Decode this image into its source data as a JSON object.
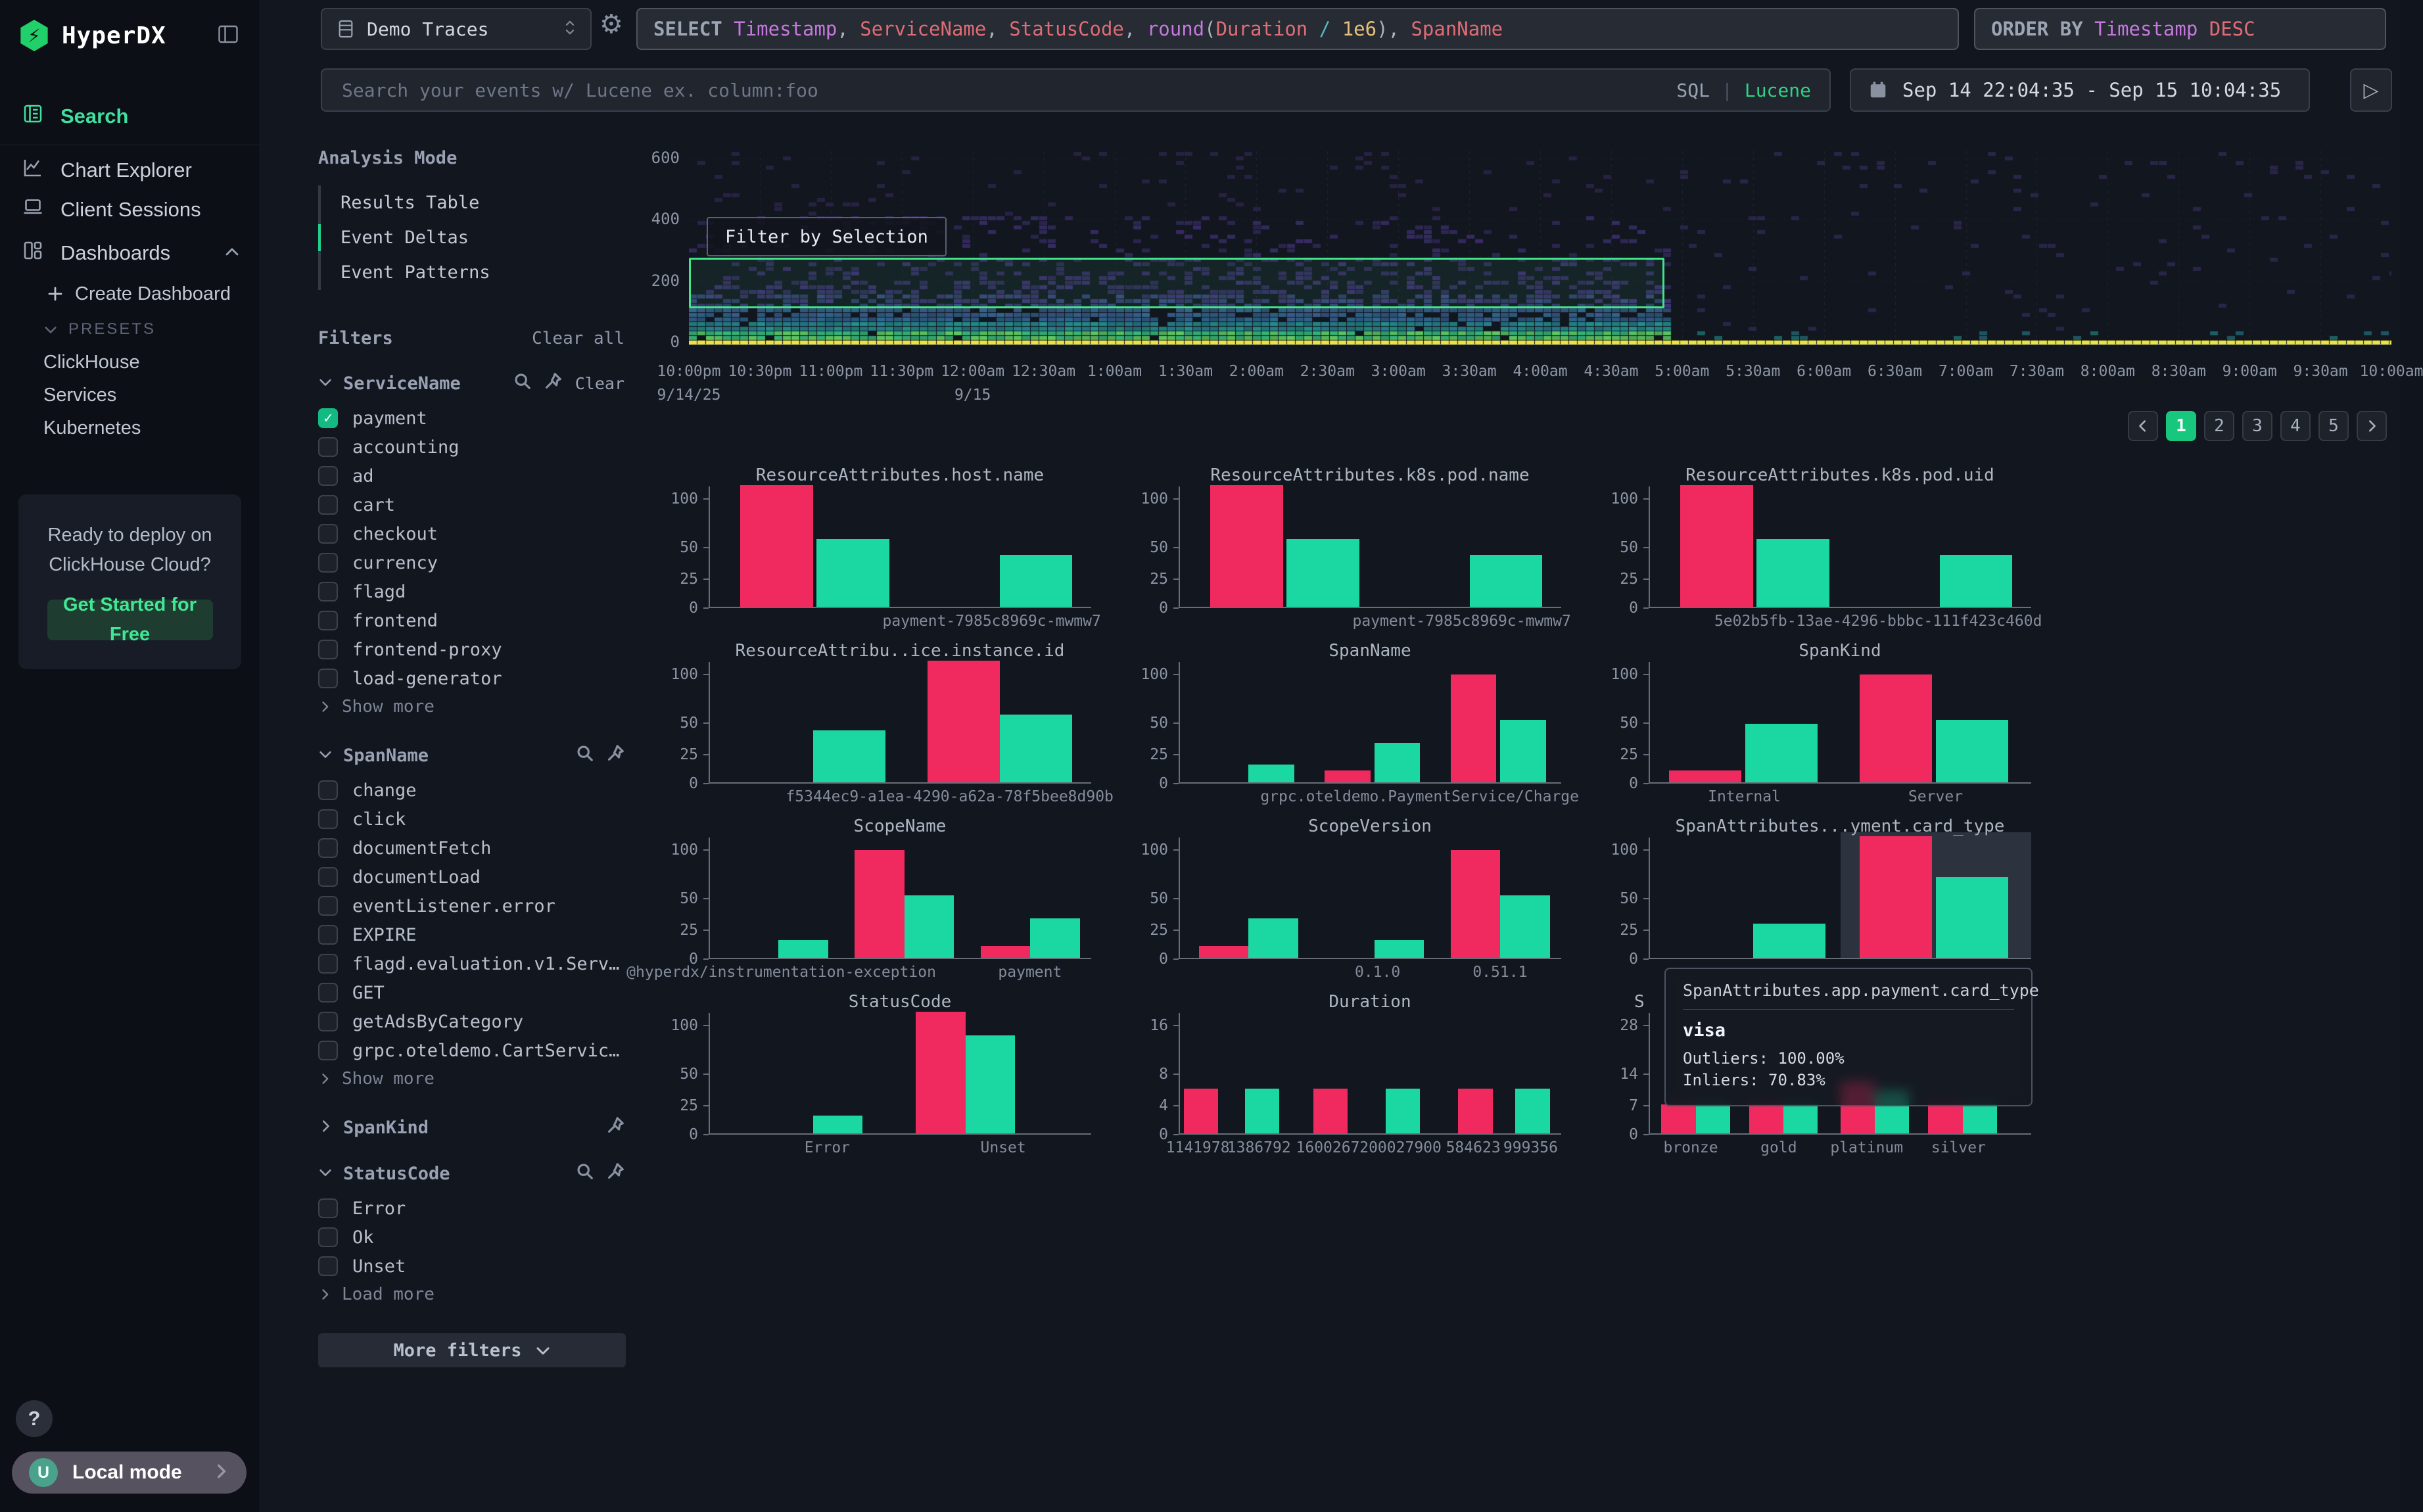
{
  "app": {
    "brand": "HyperDX"
  },
  "colors": {
    "accent_green": "#18c77e",
    "bright_green": "#3fe0a0",
    "bar_pink": "#f0295f",
    "bar_green": "#1bd8a2",
    "selection_green": "#42e38b",
    "checkbox_green": "#13ba81",
    "lucene_green": "#2fd283"
  },
  "sidebar": {
    "nav": [
      {
        "label": "Search",
        "icon": "logs-icon",
        "active": true
      },
      {
        "label": "Chart Explorer",
        "icon": "chart-icon",
        "active": false
      },
      {
        "label": "Client Sessions",
        "icon": "laptop-icon",
        "active": false
      },
      {
        "label": "Dashboards",
        "icon": "dashboard-icon",
        "active": false,
        "chevron": "up"
      }
    ],
    "create_dashboard": "Create Dashboard",
    "presets_label": "PRESETS",
    "presets": [
      "ClickHouse",
      "Services",
      "Kubernetes"
    ],
    "promo": {
      "line1": "Ready to deploy on",
      "line2": "ClickHouse Cloud?",
      "cta": "Get Started for Free"
    },
    "help": "?",
    "account": {
      "avatar": "U",
      "label": "Local mode"
    }
  },
  "topbar": {
    "source": "Demo Traces",
    "query": [
      {
        "t": "SELECT",
        "c": "kw"
      },
      {
        "t": " ",
        "c": "wh"
      },
      {
        "t": "Timestamp",
        "c": "pu"
      },
      {
        "t": ", ",
        "c": "wh"
      },
      {
        "t": "ServiceName",
        "c": "re"
      },
      {
        "t": ", ",
        "c": "wh"
      },
      {
        "t": "StatusCode",
        "c": "re"
      },
      {
        "t": ", ",
        "c": "wh"
      },
      {
        "t": "round",
        "c": "pu"
      },
      {
        "t": "(",
        "c": "wh"
      },
      {
        "t": "Duration",
        "c": "re"
      },
      {
        "t": " ",
        "c": "wh"
      },
      {
        "t": "/",
        "c": "cy"
      },
      {
        "t": " ",
        "c": "wh"
      },
      {
        "t": "1e6",
        "c": "ye"
      },
      {
        "t": ")",
        "c": "wh"
      },
      {
        "t": ", ",
        "c": "wh"
      },
      {
        "t": "SpanName",
        "c": "re"
      }
    ],
    "orderby": [
      {
        "t": "ORDER BY",
        "c": "kw"
      },
      {
        "t": " ",
        "c": "wh"
      },
      {
        "t": "Timestamp",
        "c": "pu"
      },
      {
        "t": " ",
        "c": "wh"
      },
      {
        "t": "DESC",
        "c": "re"
      }
    ],
    "search": {
      "placeholder": "Search your events w/ Lucene ex. column:foo",
      "modes": [
        "SQL",
        "Lucene"
      ],
      "active_mode": "Lucene",
      "separator": "|"
    },
    "daterange": "Sep 14 22:04:35 - Sep 15 10:04:35"
  },
  "filters_panel": {
    "analysis_mode": {
      "title": "Analysis Mode",
      "options": [
        "Results Table",
        "Event Deltas",
        "Event Patterns"
      ],
      "active": "Event Deltas"
    },
    "filters_title": "Filters",
    "clear_all": "Clear all",
    "groups": [
      {
        "name": "ServiceName",
        "expanded": true,
        "icons": [
          "search",
          "pin"
        ],
        "clear": "Clear",
        "items": [
          {
            "label": "payment",
            "checked": true
          },
          {
            "label": "accounting"
          },
          {
            "label": "ad"
          },
          {
            "label": "cart"
          },
          {
            "label": "checkout"
          },
          {
            "label": "currency"
          },
          {
            "label": "flagd"
          },
          {
            "label": "frontend"
          },
          {
            "label": "frontend-proxy"
          },
          {
            "label": "load-generator"
          }
        ],
        "more": "Show more"
      },
      {
        "name": "SpanName",
        "expanded": true,
        "icons": [
          "search",
          "pin"
        ],
        "items": [
          {
            "label": "change"
          },
          {
            "label": "click"
          },
          {
            "label": "documentFetch"
          },
          {
            "label": "documentLoad"
          },
          {
            "label": "eventListener.error"
          },
          {
            "label": "EXPIRE"
          },
          {
            "label": "flagd.evaluation.v1.Serv…"
          },
          {
            "label": "GET"
          },
          {
            "label": "getAdsByCategory"
          },
          {
            "label": "grpc.oteldemo.CartServic…"
          }
        ],
        "more": "Show more"
      },
      {
        "name": "SpanKind",
        "expanded": false,
        "icons": [
          "pin"
        ],
        "items": [],
        "more": ""
      },
      {
        "name": "StatusCode",
        "expanded": true,
        "icons": [
          "search",
          "pin"
        ],
        "items": [
          {
            "label": "Error"
          },
          {
            "label": "Ok"
          },
          {
            "label": "Unset"
          }
        ],
        "more": "Load more"
      }
    ],
    "more_filters": "More filters"
  },
  "heatmap": {
    "button_label": "Filter by Selection",
    "y_ticks": [
      "600",
      "400",
      "200",
      "0"
    ],
    "x_labels": [
      "10:00pm",
      "10:30pm",
      "11:00pm",
      "11:30pm",
      "12:00am",
      "12:30am",
      "1:00am",
      "1:30am",
      "2:00am",
      "2:30am",
      "3:00am",
      "3:30am",
      "4:00am",
      "4:30am",
      "5:00am",
      "5:30am",
      "6:00am",
      "6:30am",
      "7:00am",
      "7:30am",
      "8:00am",
      "8:30am",
      "9:00am",
      "9:30am",
      "10:00am"
    ],
    "date_labels": [
      {
        "t": "9/14/25",
        "i": 0
      },
      {
        "t": "9/15",
        "i": 4
      }
    ],
    "dense_end": 0.572,
    "palette": {
      "line": "#e9e441",
      "greens": [
        "#5ec962",
        "#35b779"
      ],
      "teals": [
        "#27808e",
        "#21918c"
      ],
      "blues": [
        "#31688e",
        "#3a5e8c"
      ],
      "darks": [
        "#3d4a89",
        "#453781"
      ],
      "purples": [
        "#46327e",
        "#3f3575"
      ],
      "faint": "#352c5a"
    }
  },
  "pagination": {
    "pages": [
      "1",
      "2",
      "3",
      "4",
      "5"
    ],
    "active": "1"
  },
  "chart_data": [
    {
      "type": "bar",
      "title": "ResourceAttributes.host.name",
      "ticks": [
        "100",
        "50",
        "25",
        "0"
      ],
      "t0": 100,
      "bw": 19,
      "bars": [
        {
          "v": 115,
          "c": "p",
          "x": 8
        },
        {
          "v": 57,
          "c": "g",
          "x": 28
        },
        {
          "v": 43,
          "c": "g",
          "x": 76
        }
      ],
      "labels": [
        {
          "t": "payment-7985c8969c-mwmw7",
          "x": 74
        }
      ]
    },
    {
      "type": "bar",
      "title": "ResourceAttributes.k8s.pod.name",
      "ticks": [
        "100",
        "50",
        "25",
        "0"
      ],
      "t0": 100,
      "bw": 19,
      "bars": [
        {
          "v": 115,
          "c": "p",
          "x": 8
        },
        {
          "v": 57,
          "c": "g",
          "x": 28
        },
        {
          "v": 43,
          "c": "g",
          "x": 76
        }
      ],
      "labels": [
        {
          "t": "payment-7985c8969c-mwmw7",
          "x": 74
        }
      ]
    },
    {
      "type": "bar",
      "title": "ResourceAttributes.k8s.pod.uid",
      "ticks": [
        "100",
        "50",
        "25",
        "0"
      ],
      "t0": 100,
      "bw": 19,
      "bars": [
        {
          "v": 115,
          "c": "p",
          "x": 8
        },
        {
          "v": 57,
          "c": "g",
          "x": 28
        },
        {
          "v": 43,
          "c": "g",
          "x": 76
        }
      ],
      "labels": [
        {
          "t": "5e02b5fb-13ae-4296-bbbc-111f423c460d",
          "x": 60
        }
      ]
    },
    {
      "type": "bar",
      "title": "ResourceAttribu..ice.instance.id",
      "ticks": [
        "100",
        "50",
        "25",
        "0"
      ],
      "t0": 100,
      "bw": 19,
      "bars": [
        {
          "v": 43,
          "c": "g",
          "x": 27
        },
        {
          "v": 115,
          "c": "p",
          "x": 57
        },
        {
          "v": 57,
          "c": "g",
          "x": 76
        }
      ],
      "labels": [
        {
          "t": "f5344ec9-a1ea-4290-a62a-78f5bee8d90b",
          "x": 63
        }
      ]
    },
    {
      "type": "bar",
      "title": "SpanName",
      "ticks": [
        "100",
        "50",
        "25",
        "0"
      ],
      "t0": 100,
      "bw": 12,
      "bars": [
        {
          "v": 15,
          "c": "g",
          "x": 18
        },
        {
          "v": 10,
          "c": "p",
          "x": 38
        },
        {
          "v": 33,
          "c": "g",
          "x": 51
        },
        {
          "v": 98,
          "c": "p",
          "x": 71
        },
        {
          "v": 52,
          "c": "g",
          "x": 84
        }
      ],
      "labels": [
        {
          "t": "grpc.oteldemo.PaymentService/Charge",
          "x": 63
        }
      ]
    },
    {
      "type": "bar",
      "title": "SpanKind",
      "ticks": [
        "100",
        "50",
        "25",
        "0"
      ],
      "t0": 100,
      "bw": 19,
      "bars": [
        {
          "v": 10,
          "c": "p",
          "x": 5
        },
        {
          "v": 48,
          "c": "g",
          "x": 25
        },
        {
          "v": 98,
          "c": "p",
          "x": 55
        },
        {
          "v": 52,
          "c": "g",
          "x": 75
        }
      ],
      "labels": [
        {
          "t": "Internal",
          "x": 25
        },
        {
          "t": "Server",
          "x": 75
        }
      ]
    },
    {
      "type": "bar",
      "title": "ScopeName",
      "ticks": [
        "100",
        "50",
        "25",
        "0"
      ],
      "t0": 100,
      "bw": 13,
      "bars": [
        {
          "v": 15,
          "c": "g",
          "x": 18
        },
        {
          "v": 98,
          "c": "p",
          "x": 38
        },
        {
          "v": 52,
          "c": "g",
          "x": 51
        },
        {
          "v": 10,
          "c": "p",
          "x": 71
        },
        {
          "v": 33,
          "c": "g",
          "x": 84
        }
      ],
      "labels": [
        {
          "t": "@hyperdx/instrumentation-exception",
          "x": 19
        },
        {
          "t": "payment",
          "x": 84
        }
      ]
    },
    {
      "type": "bar",
      "title": "ScopeVersion",
      "ticks": [
        "100",
        "50",
        "25",
        "0"
      ],
      "t0": 100,
      "bw": 13,
      "bars": [
        {
          "v": 10,
          "c": "p",
          "x": 5
        },
        {
          "v": 33,
          "c": "g",
          "x": 18
        },
        {
          "v": 15,
          "c": "g",
          "x": 51
        },
        {
          "v": 98,
          "c": "p",
          "x": 71
        },
        {
          "v": 52,
          "c": "g",
          "x": 84
        }
      ],
      "labels": [
        {
          "t": "0.1.0",
          "x": 52
        },
        {
          "t": "0.51.1",
          "x": 84
        }
      ]
    },
    {
      "type": "bar",
      "title": "SpanAttributes...yment.card_type",
      "ticks": [
        "100",
        "50",
        "25",
        "0"
      ],
      "t0": 100,
      "bw": 19,
      "hover_band": {
        "x": 50,
        "w": 50
      },
      "bars": [
        {
          "v": 29,
          "c": "g",
          "x": 27
        },
        {
          "v": 115,
          "c": "p",
          "x": 55
        },
        {
          "v": 70.83,
          "c": "g",
          "x": 75
        }
      ],
      "labels": []
    },
    {
      "type": "bar",
      "title": "StatusCode",
      "ticks": [
        "100",
        "50",
        "25",
        "0"
      ],
      "t0": 100,
      "bw": 13,
      "bars": [
        {
          "v": 15,
          "c": "g",
          "x": 27
        },
        {
          "v": 115,
          "c": "p",
          "x": 54
        },
        {
          "v": 88,
          "c": "g",
          "x": 67
        }
      ],
      "labels": [
        {
          "t": "Error",
          "x": 31
        },
        {
          "t": "Unset",
          "x": 77
        }
      ]
    },
    {
      "type": "bar",
      "title": "Duration",
      "ticks": [
        "16",
        "8",
        "4",
        "0"
      ],
      "t0": 16,
      "bw": 9,
      "bars": [
        {
          "v": 6,
          "c": "p",
          "x": 1
        },
        {
          "v": 6,
          "c": "g",
          "x": 17
        },
        {
          "v": 6,
          "c": "p",
          "x": 35
        },
        {
          "v": 6,
          "c": "g",
          "x": 54
        },
        {
          "v": 6,
          "c": "p",
          "x": 73
        },
        {
          "v": 6,
          "c": "g",
          "x": 88
        }
      ],
      "labels": [
        {
          "t": "1141978",
          "x": 5
        },
        {
          "t": "1386792",
          "x": 21
        },
        {
          "t": "1600267",
          "x": 39
        },
        {
          "t": "200027900",
          "x": 58
        },
        {
          "t": "584623",
          "x": 77
        },
        {
          "t": "999356",
          "x": 92
        }
      ]
    },
    {
      "type": "bar",
      "title": "S",
      "title_left": true,
      "ticks": [
        "28",
        "14",
        "7",
        "0"
      ],
      "t0": 28,
      "bw": 9,
      "bars": [
        {
          "v": 7,
          "c": "p",
          "x": 3
        },
        {
          "v": 7,
          "c": "g",
          "x": 12
        },
        {
          "v": 7,
          "c": "p",
          "x": 26
        },
        {
          "v": 7,
          "c": "g",
          "x": 35
        },
        {
          "v": 12,
          "c": "p",
          "x": 50
        },
        {
          "v": 10,
          "c": "g",
          "x": 59
        },
        {
          "v": 7,
          "c": "p",
          "x": 73
        },
        {
          "v": 7,
          "c": "g",
          "x": 82
        }
      ],
      "labels": [
        {
          "t": "bronze",
          "x": 11
        },
        {
          "t": "gold",
          "x": 34
        },
        {
          "t": "platinum",
          "x": 57
        },
        {
          "t": "silver",
          "x": 81
        }
      ]
    }
  ],
  "tooltip": {
    "header": "SpanAttributes.app.payment.card_type",
    "value": "visa",
    "lines": [
      "Outliers: 100.00%",
      "Inliers: 70.83%"
    ]
  }
}
